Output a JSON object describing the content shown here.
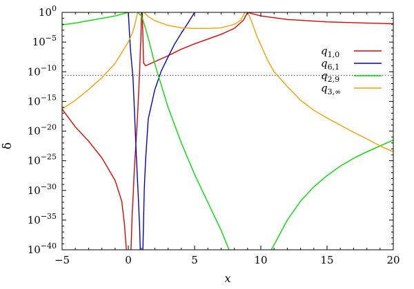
{
  "chart_data": {
    "type": "line",
    "title": "",
    "xlabel": "x",
    "ylabel": "δ",
    "y_scale": "log10",
    "xlim": [
      -5,
      20
    ],
    "ylim_exp": [
      -40,
      0
    ],
    "x_ticks": [
      -5,
      0,
      5,
      10,
      15,
      20
    ],
    "x_tick_labels": [
      "−5",
      "0",
      "5",
      "10",
      "15",
      "20"
    ],
    "y_ticks_exp": [
      0,
      -5,
      -10,
      -15,
      -20,
      -25,
      -30,
      -35,
      -40
    ],
    "y_tick_base": "10",
    "y_tick_exps": [
      "0",
      "−5",
      "−10",
      "−15",
      "−20",
      "−25",
      "−30",
      "−35",
      "−40"
    ],
    "reference_line": {
      "style": "dotted",
      "y_exp": -10.6,
      "y_value": "≈ 2.2e-11"
    },
    "legend_position": "top-right",
    "series": [
      {
        "name": "q1,0",
        "legend_base": "q",
        "legend_sub": "1,0",
        "color": "#e00000",
        "segments": [
          [
            [
              -5,
              -16.3
            ],
            [
              -4,
              -19.3
            ],
            [
              -3,
              -21.7
            ],
            [
              -2,
              -24.5
            ],
            [
              -1,
              -28.3
            ],
            [
              -0.5,
              -31.8
            ],
            [
              -0.3,
              -35.5
            ],
            [
              -0.15,
              -40
            ]
          ],
          [
            [
              0.2,
              -40
            ],
            [
              0.3,
              -33.5
            ],
            [
              0.35,
              -31.5
            ],
            [
              0.45,
              -26.6
            ],
            [
              0.7,
              -17.3
            ],
            [
              0.85,
              -10
            ],
            [
              0.95,
              -4
            ],
            [
              1,
              0
            ]
          ],
          [
            [
              1.05,
              0
            ],
            [
              1.1,
              -4
            ],
            [
              1.15,
              -8.5
            ],
            [
              1.3,
              -9
            ],
            [
              1.5,
              -8.8
            ],
            [
              2,
              -8.3
            ],
            [
              3,
              -7.3
            ],
            [
              4,
              -6.2
            ],
            [
              5,
              -5.3
            ],
            [
              6,
              -4.5
            ],
            [
              7,
              -3.7
            ],
            [
              8,
              -2.7
            ],
            [
              8.7,
              -1.3
            ],
            [
              9,
              0
            ]
          ],
          [
            [
              9,
              0
            ],
            [
              10,
              -0.6
            ],
            [
              12,
              -1.2
            ],
            [
              15,
              -1.6
            ],
            [
              18,
              -1.8
            ],
            [
              20,
              -1.9
            ]
          ]
        ]
      },
      {
        "name": "q6,1",
        "legend_base": "q",
        "legend_sub": "6,1",
        "color": "#0000cc",
        "segments": [
          [
            [
              0,
              0
            ],
            [
              0.15,
              -6
            ],
            [
              0.35,
              -11
            ],
            [
              0.45,
              -16
            ],
            [
              0.6,
              -24
            ],
            [
              0.75,
              -31
            ],
            [
              0.85,
              -36
            ],
            [
              0.9,
              -40
            ]
          ],
          [
            [
              1.1,
              -40
            ],
            [
              1.2,
              -30
            ],
            [
              1.3,
              -25
            ],
            [
              1.5,
              -18
            ],
            [
              2,
              -13
            ],
            [
              2.5,
              -9.8
            ],
            [
              3,
              -7.5
            ],
            [
              3.5,
              -5.3
            ],
            [
              4,
              -3.5
            ],
            [
              4.5,
              -1.8
            ],
            [
              5,
              0
            ]
          ]
        ]
      },
      {
        "name": "q2,9",
        "legend_base": "q",
        "legend_sub": "2,9",
        "color": "#00dd00",
        "segments": [
          [
            [
              -5,
              -2.1
            ],
            [
              -4,
              -1.8
            ],
            [
              -3,
              -1.4
            ],
            [
              -2,
              -1
            ],
            [
              -1,
              -0.6
            ],
            [
              0,
              0
            ]
          ],
          [
            [
              0.7,
              0
            ],
            [
              1,
              -0.6
            ],
            [
              1.2,
              -2
            ],
            [
              1.5,
              -4.3
            ],
            [
              2,
              -8.7
            ],
            [
              3,
              -16
            ],
            [
              4,
              -22
            ],
            [
              5,
              -27.3
            ],
            [
              6,
              -32
            ],
            [
              7,
              -36.7
            ],
            [
              7.6,
              -40
            ]
          ],
          [
            [
              10.8,
              -40
            ],
            [
              12,
              -35
            ],
            [
              13,
              -31.8
            ],
            [
              14,
              -29.4
            ],
            [
              15,
              -27.5
            ],
            [
              16,
              -25.9
            ],
            [
              17,
              -24.6
            ],
            [
              18,
              -23.5
            ],
            [
              19,
              -22.5
            ],
            [
              20,
              -21.5
            ]
          ]
        ]
      },
      {
        "name": "q3,∞",
        "legend_base": "q",
        "legend_sub": "3,∞",
        "color": "#f0a000",
        "segments": [
          [
            [
              -5,
              -16.3
            ],
            [
              -4,
              -14.8
            ],
            [
              -3,
              -13
            ],
            [
              -2,
              -11
            ],
            [
              -1,
              -8.6
            ],
            [
              0,
              -5
            ],
            [
              0.3,
              -3.5
            ],
            [
              0.5,
              -2
            ],
            [
              0.7,
              0
            ]
          ],
          [
            [
              1.2,
              0
            ],
            [
              1.5,
              -0.7
            ],
            [
              2,
              -1.4
            ],
            [
              3,
              -2.2
            ],
            [
              4,
              -2.6
            ],
            [
              5,
              -2.7
            ],
            [
              6,
              -2.7
            ],
            [
              7,
              -2.6
            ],
            [
              8,
              -2
            ],
            [
              8.5,
              -1.3
            ],
            [
              8.8,
              0
            ]
          ],
          [
            [
              9,
              0
            ],
            [
              9.3,
              -1.5
            ],
            [
              9.7,
              -4
            ],
            [
              10,
              -5.5
            ],
            [
              10.5,
              -8
            ],
            [
              11,
              -10
            ],
            [
              12,
              -12.5
            ],
            [
              13,
              -14.8
            ],
            [
              14,
              -16.5
            ],
            [
              15,
              -17.8
            ],
            [
              16,
              -19
            ],
            [
              17,
              -20.2
            ],
            [
              18,
              -21.3
            ],
            [
              19,
              -22.5
            ],
            [
              20,
              -23.5
            ]
          ]
        ]
      }
    ]
  }
}
